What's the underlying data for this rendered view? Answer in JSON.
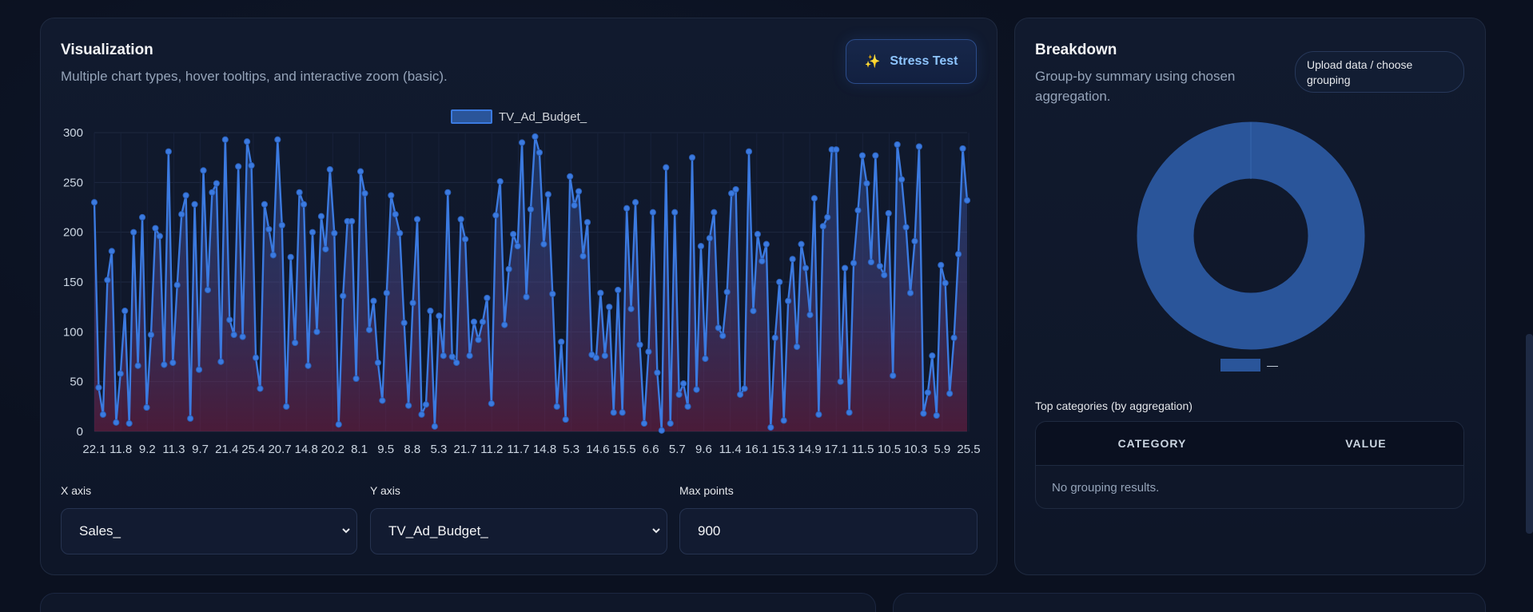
{
  "visualization": {
    "title": "Visualization",
    "subtitle": "Multiple chart types, hover tooltips, and interactive zoom (basic).",
    "stress_button": {
      "icon": "sparkles-icon",
      "label": "Stress Test"
    }
  },
  "controls": {
    "x_axis": {
      "label": "X axis",
      "value": "Sales_"
    },
    "y_axis": {
      "label": "Y axis",
      "value": "TV_Ad_Budget_"
    },
    "max_points": {
      "label": "Max points",
      "value": "900"
    }
  },
  "breakdown": {
    "title": "Breakdown",
    "subtitle": "Group-by summary using chosen aggregation.",
    "upload_button": "Upload data / choose grouping",
    "legend_label": "—",
    "top_categories_label": "Top categories (by aggregation)",
    "table": {
      "columns": [
        "CATEGORY",
        "VALUE"
      ],
      "empty_text": "No grouping results."
    }
  },
  "colors": {
    "accent": "#3b82f6",
    "fill_bottom": "#5b1f3a",
    "donut": "#2a559a",
    "background": "#0b1120"
  },
  "chart_data": [
    {
      "type": "line",
      "series": [
        {
          "name": "TV_Ad_Budget_",
          "values": [
            230,
            44,
            17,
            152,
            181,
            9,
            58,
            121,
            8,
            200,
            66,
            215,
            24,
            97,
            204,
            196,
            67,
            281,
            69,
            147,
            218,
            237,
            13,
            228,
            62,
            262,
            142,
            240,
            249,
            70,
            293,
            112,
            97,
            266,
            95,
            291,
            267,
            74,
            43,
            228,
            203,
            177,
            293,
            207,
            25,
            175,
            89,
            240,
            228,
            66,
            200,
            100,
            216,
            183,
            263,
            199,
            7,
            136,
            211,
            211,
            53,
            261,
            239,
            102,
            131,
            69,
            31,
            139,
            237,
            218,
            199,
            109,
            26,
            129,
            213,
            17,
            27,
            121,
            5,
            116,
            76,
            240,
            75,
            69,
            213,
            193,
            76,
            110,
            92,
            110,
            134,
            28,
            217,
            251,
            107,
            163,
            198,
            186,
            290,
            135,
            223,
            296,
            280,
            188,
            238,
            138,
            25,
            90,
            12,
            256,
            227,
            241,
            176,
            210,
            77,
            74,
            139,
            76,
            125,
            19,
            142,
            19,
            224,
            123,
            230,
            87,
            8,
            80,
            220,
            59,
            1,
            265,
            8,
            220,
            37,
            48,
            25,
            275,
            42,
            186,
            73,
            194,
            220,
            104,
            96,
            140,
            239,
            243,
            37,
            43,
            281,
            121,
            198,
            171,
            188,
            4,
            94,
            150,
            11,
            131,
            173,
            85,
            188,
            164,
            117,
            234,
            17,
            206,
            215,
            283,
            283,
            50,
            164,
            19,
            169,
            222,
            277,
            249,
            170,
            277,
            166,
            157,
            219,
            56,
            288,
            253,
            205,
            139,
            191,
            286,
            18,
            39,
            76,
            16,
            167,
            149,
            38,
            94,
            178,
            284,
            232
          ]
        }
      ],
      "x_tick_labels": [
        "22.1",
        "11.8",
        "9.2",
        "11.3",
        "9.7",
        "21.4",
        "25.4",
        "20.7",
        "14.8",
        "20.2",
        "8.1",
        "9.5",
        "8.8",
        "5.3",
        "21.7",
        "11.2",
        "11.7",
        "14.8",
        "5.3",
        "14.6",
        "15.5",
        "6.6",
        "5.7",
        "9.6",
        "11.4",
        "16.1",
        "15.3",
        "14.9",
        "17.1",
        "11.5",
        "10.5",
        "10.3",
        "5.9",
        "25.5"
      ],
      "y_ticks": [
        0,
        50,
        100,
        150,
        200,
        250,
        300
      ],
      "ylim": [
        0,
        300
      ],
      "legend": "top-center",
      "grid": true
    },
    {
      "type": "pie",
      "variant": "donut",
      "slices": [
        {
          "name": "—",
          "value": 1
        }
      ]
    }
  ]
}
